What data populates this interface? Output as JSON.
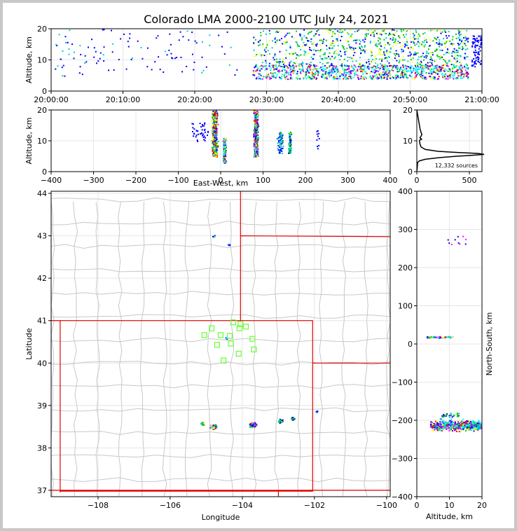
{
  "title": "Colorado LMA 2000-2100 UTC July 24, 2021",
  "colors": {
    "frame": "#c8c8c8",
    "grid": "#e6e6e6",
    "boundary": "#c8c8c8",
    "state_line": "#e00000",
    "station": "#66ff33",
    "profile": "#000000"
  },
  "chart_data": [
    {
      "id": "time-altitude",
      "type": "scatter",
      "xlabel": "",
      "ylabel": "Altitude, km",
      "xticks": [
        "20:00:00",
        "20:10:00",
        "20:20:00",
        "20:30:00",
        "20:40:00",
        "20:50:00",
        "21:00:00"
      ],
      "xlim": [
        0,
        60
      ],
      "ylim": [
        0,
        20
      ],
      "yticks": [
        0,
        10,
        20
      ],
      "grid": true
    },
    {
      "id": "ew-altitude",
      "type": "scatter",
      "xlabel": "East-West, km",
      "ylabel": "Altitude, km",
      "xlim": [
        -400,
        400
      ],
      "xticks": [
        -400,
        -300,
        -200,
        -100,
        0,
        100,
        200,
        300,
        400
      ],
      "ylim": [
        0,
        20
      ],
      "yticks": [
        0,
        10,
        20
      ],
      "grid": true
    },
    {
      "id": "altitude-histogram",
      "type": "line",
      "xlim": [
        0,
        620
      ],
      "xticks": [
        0,
        500
      ],
      "ylim": [
        0,
        20
      ],
      "yticks": [
        0,
        10,
        20
      ],
      "annotation": "12,332 sources",
      "profile": [
        [
          0,
          0.3
        ],
        [
          3,
          1
        ],
        [
          5,
          2
        ],
        [
          8,
          3
        ],
        [
          25,
          3.5
        ],
        [
          80,
          4
        ],
        [
          200,
          4.5
        ],
        [
          380,
          5
        ],
        [
          520,
          5.3
        ],
        [
          640,
          5.6
        ],
        [
          580,
          5.9
        ],
        [
          400,
          6.2
        ],
        [
          200,
          6.6
        ],
        [
          80,
          7.2
        ],
        [
          40,
          8
        ],
        [
          30,
          9
        ],
        [
          28,
          9.5
        ],
        [
          25,
          10
        ],
        [
          30,
          10.3
        ],
        [
          45,
          10.5
        ],
        [
          35,
          10.8
        ],
        [
          30,
          11
        ],
        [
          40,
          11.5
        ],
        [
          48,
          12
        ],
        [
          45,
          12.3
        ],
        [
          40,
          12.8
        ],
        [
          35,
          13.3
        ],
        [
          30,
          14
        ],
        [
          25,
          15
        ],
        [
          20,
          16
        ],
        [
          15,
          17
        ],
        [
          10,
          18
        ],
        [
          5,
          19
        ],
        [
          2,
          19.7
        ],
        [
          0,
          20
        ]
      ],
      "grid": true
    },
    {
      "id": "plan-view",
      "type": "scatter",
      "xlabel": "Longitude",
      "ylabel": "Latitude",
      "xlim": [
        -109.3,
        -99.9
      ],
      "xticks": [
        -108,
        -106,
        -104,
        -102,
        -100
      ],
      "ylim": [
        36.85,
        44.05
      ],
      "yticks": [
        37,
        38,
        39,
        40,
        41,
        42,
        43,
        44
      ],
      "grid": true,
      "stations": [
        [
          -104.25,
          40.96
        ],
        [
          -104.05,
          40.92
        ],
        [
          -103.9,
          40.86
        ],
        [
          -104.85,
          40.82
        ],
        [
          -104.08,
          40.82
        ],
        [
          -105.05,
          40.66
        ],
        [
          -104.6,
          40.66
        ],
        [
          -104.35,
          40.64
        ],
        [
          -103.72,
          40.57
        ],
        [
          -104.32,
          40.46
        ],
        [
          -104.7,
          40.43
        ],
        [
          -103.68,
          40.32
        ],
        [
          -104.1,
          40.22
        ],
        [
          -104.52,
          40.06
        ]
      ]
    },
    {
      "id": "altitude-ns",
      "type": "scatter",
      "xlabel": "Altitude, km",
      "ylabel": "North-South, km",
      "xlim": [
        0,
        20
      ],
      "xticks": [
        0,
        10,
        20
      ],
      "ylim": [
        -400,
        400
      ],
      "yticks": [
        -400,
        -300,
        -200,
        -100,
        0,
        100,
        200,
        300,
        400
      ],
      "grid": true
    }
  ]
}
